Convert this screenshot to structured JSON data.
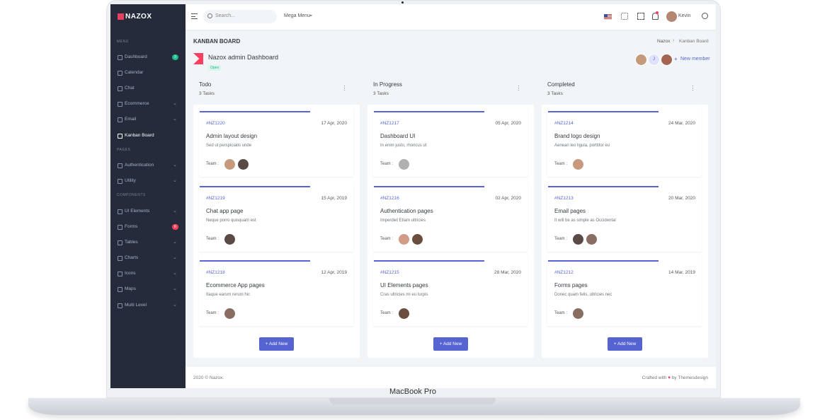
{
  "device": {
    "label": "MacBook Pro"
  },
  "sidebar": {
    "brand": "NAZOX",
    "sections": [
      {
        "title": "MENU",
        "items": [
          {
            "label": "Dashboard",
            "badge": "3"
          },
          {
            "label": "Calendar"
          },
          {
            "label": "Chat"
          },
          {
            "label": "Ecommerce",
            "submenu": true
          },
          {
            "label": "Email",
            "submenu": true
          },
          {
            "label": "Kanban Board"
          }
        ]
      },
      {
        "title": "PAGES",
        "items": [
          {
            "label": "Authentication",
            "submenu": true
          },
          {
            "label": "Utility",
            "submenu": true
          }
        ]
      },
      {
        "title": "COMPONENTS",
        "items": [
          {
            "label": "UI Elements",
            "submenu": true
          },
          {
            "label": "Forms",
            "badge": "6"
          },
          {
            "label": "Tables",
            "submenu": true
          },
          {
            "label": "Charts",
            "submenu": true
          },
          {
            "label": "Icons",
            "submenu": true
          },
          {
            "label": "Maps",
            "submenu": true
          },
          {
            "label": "Multi Level",
            "submenu": true
          }
        ]
      }
    ]
  },
  "topbar": {
    "search_placeholder": "Search...",
    "mega_menu": "Mega Menu",
    "user": "Kevin"
  },
  "page": {
    "title": "KANBAN BOARD",
    "breadcrumb": [
      "Nazox",
      "Kanban Board"
    ],
    "project": {
      "name": "Nazox admin Dashboard",
      "status": "Open"
    },
    "members": {
      "initial": "J",
      "add": "New member"
    }
  },
  "board": {
    "add_button": "Add New",
    "team_label": "Team :",
    "columns": [
      {
        "title": "Todo",
        "count": "3 Tasks",
        "cards": [
          {
            "id": "#NZ1220",
            "date": "17 Apr, 2020",
            "title": "Admin layout design",
            "desc": "Sed ut perspiciatis unde"
          },
          {
            "id": "#NZ1219",
            "date": "15 Apr, 2019",
            "title": "Chat app page",
            "desc": "Neque porro quisquam est"
          },
          {
            "id": "#NZ1218",
            "date": "12 Apr, 2019",
            "title": "Ecommerce App pages",
            "desc": "Itaque earum rerum hic"
          }
        ]
      },
      {
        "title": "In Progress",
        "count": "3 Tasks",
        "cards": [
          {
            "id": "#NZ1217",
            "date": "05 Apr, 2020",
            "title": "Dashboard UI",
            "desc": "In enim justo, rhoncus ut"
          },
          {
            "id": "#NZ1216",
            "date": "02 Apr, 2020",
            "title": "Authentication pages",
            "desc": "Imperdiet Etiam ultricies"
          },
          {
            "id": "#NZ1215",
            "date": "28 Mar, 2020",
            "title": "UI Elements pages",
            "desc": "Cras ultricies mi eu turpis"
          }
        ]
      },
      {
        "title": "Completed",
        "count": "3 Tasks",
        "cards": [
          {
            "id": "#NZ1214",
            "date": "24 Mar, 2020",
            "title": "Brand logo design",
            "desc": "Aenean leo ligula, porttitor eu"
          },
          {
            "id": "#NZ1213",
            "date": "20 Mar, 2020",
            "title": "Email pages",
            "desc": "It will be as simple as Occidental"
          },
          {
            "id": "#NZ1212",
            "date": "14 Mar, 2019",
            "title": "Forms pages",
            "desc": "Donec quam felis, ultricies nec"
          }
        ]
      }
    ]
  },
  "footer": {
    "copyright": "2020 © Nazox.",
    "credit_pre": "Crafted with",
    "credit_post": "by Themesdesign"
  }
}
